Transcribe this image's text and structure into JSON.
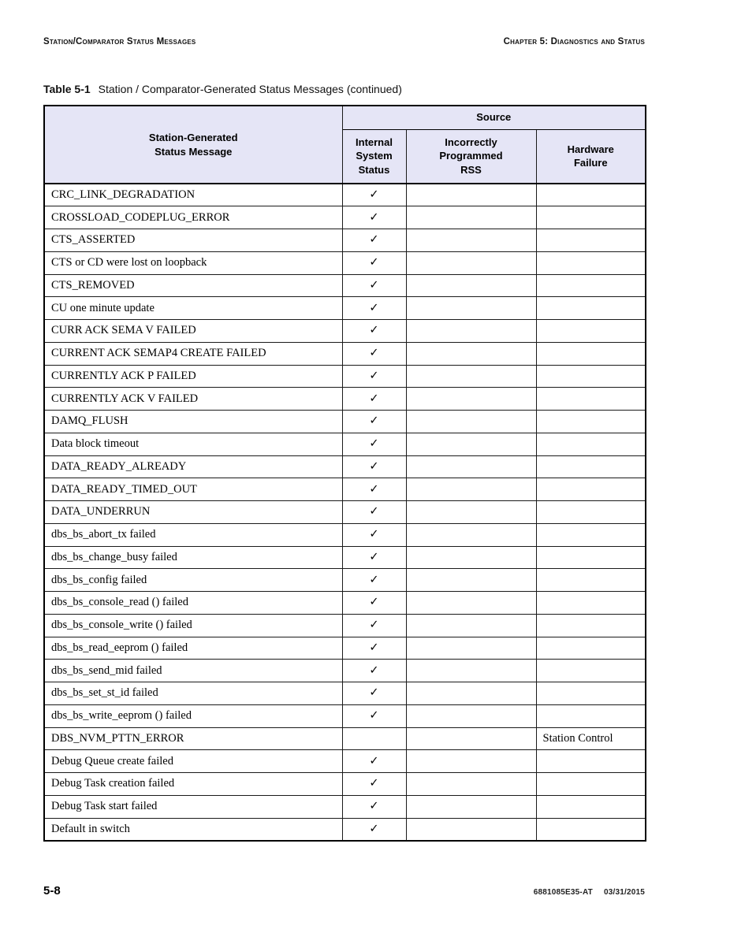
{
  "page_header": {
    "left": "Station/Comparator Status Messages",
    "right": "Chapter 5: Diagnostics and Status"
  },
  "table_title": {
    "label": "Table 5-1",
    "text": "Station / Comparator-Generated Status Messages (continued)"
  },
  "table": {
    "header_bg": "#E5E5F6",
    "col1_header": "Station-Generated\nStatus Message",
    "source_header": "Source",
    "sub_headers": [
      "Internal\nSystem\nStatus",
      "Incorrectly\nProgrammed\nRSS",
      "Hardware\nFailure"
    ],
    "check_glyph": "✓",
    "rows": [
      {
        "message": "CRC_LINK_DEGRADATION",
        "internal": "✓",
        "rss": "",
        "hardware": ""
      },
      {
        "message": "CROSSLOAD_CODEPLUG_ERROR",
        "internal": "✓",
        "rss": "",
        "hardware": ""
      },
      {
        "message": "CTS_ASSERTED",
        "internal": "✓",
        "rss": "",
        "hardware": ""
      },
      {
        "message": "CTS or CD were lost on loopback",
        "internal": "✓",
        "rss": "",
        "hardware": ""
      },
      {
        "message": "CTS_REMOVED",
        "internal": "✓",
        "rss": "",
        "hardware": ""
      },
      {
        "message": "CU one minute update",
        "internal": "✓",
        "rss": "",
        "hardware": ""
      },
      {
        "message": "CURR ACK SEMA V FAILED",
        "internal": "✓",
        "rss": "",
        "hardware": ""
      },
      {
        "message": "CURRENT ACK SEMAP4 CREATE FAILED",
        "internal": "✓",
        "rss": "",
        "hardware": ""
      },
      {
        "message": "CURRENTLY ACK P FAILED",
        "internal": "✓",
        "rss": "",
        "hardware": ""
      },
      {
        "message": "CURRENTLY ACK V FAILED",
        "internal": "✓",
        "rss": "",
        "hardware": ""
      },
      {
        "message": "DAMQ_FLUSH",
        "internal": "✓",
        "rss": "",
        "hardware": ""
      },
      {
        "message": "Data block timeout",
        "internal": "✓",
        "rss": "",
        "hardware": ""
      },
      {
        "message": "DATA_READY_ALREADY",
        "internal": "✓",
        "rss": "",
        "hardware": ""
      },
      {
        "message": "DATA_READY_TIMED_OUT",
        "internal": "✓",
        "rss": "",
        "hardware": ""
      },
      {
        "message": "DATA_UNDERRUN",
        "internal": "✓",
        "rss": "",
        "hardware": ""
      },
      {
        "message": "dbs_bs_abort_tx failed",
        "internal": "✓",
        "rss": "",
        "hardware": ""
      },
      {
        "message": "dbs_bs_change_busy failed",
        "internal": "✓",
        "rss": "",
        "hardware": ""
      },
      {
        "message": "dbs_bs_config failed",
        "internal": "✓",
        "rss": "",
        "hardware": ""
      },
      {
        "message": "dbs_bs_console_read () failed",
        "internal": "✓",
        "rss": "",
        "hardware": ""
      },
      {
        "message": "dbs_bs_console_write () failed",
        "internal": "✓",
        "rss": "",
        "hardware": ""
      },
      {
        "message": "dbs_bs_read_eeprom () failed",
        "internal": "✓",
        "rss": "",
        "hardware": ""
      },
      {
        "message": "dbs_bs_send_mid failed",
        "internal": "✓",
        "rss": "",
        "hardware": ""
      },
      {
        "message": "dbs_bs_set_st_id failed",
        "internal": "✓",
        "rss": "",
        "hardware": ""
      },
      {
        "message": "dbs_bs_write_eeprom () failed",
        "internal": "✓",
        "rss": "",
        "hardware": ""
      },
      {
        "message": "DBS_NVM_PTTN_ERROR",
        "internal": "",
        "rss": "",
        "hardware": "Station Control"
      },
      {
        "message": "Debug Queue create failed",
        "internal": "✓",
        "rss": "",
        "hardware": ""
      },
      {
        "message": "Debug Task creation failed",
        "internal": "✓",
        "rss": "",
        "hardware": ""
      },
      {
        "message": "Debug Task start failed",
        "internal": "✓",
        "rss": "",
        "hardware": ""
      },
      {
        "message": "Default in switch",
        "internal": "✓",
        "rss": "",
        "hardware": ""
      }
    ]
  },
  "footer": {
    "page": "5-8",
    "doc_number": "6881085E35-AT",
    "date": "03/31/2015"
  }
}
